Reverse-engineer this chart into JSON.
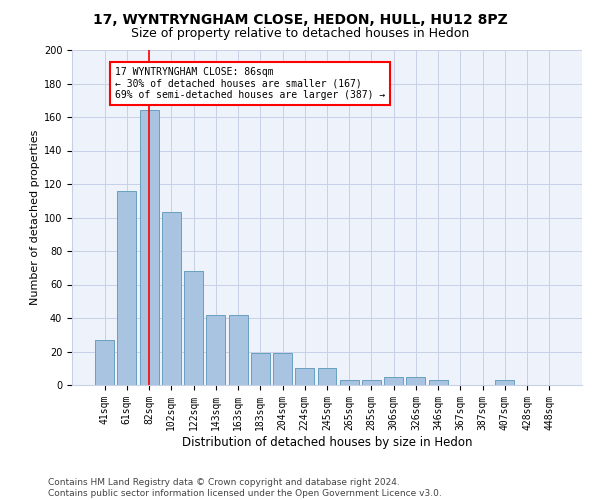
{
  "title": "17, WYNTRYNGHAM CLOSE, HEDON, HULL, HU12 8PZ",
  "subtitle": "Size of property relative to detached houses in Hedon",
  "xlabel": "Distribution of detached houses by size in Hedon",
  "ylabel": "Number of detached properties",
  "categories": [
    "41sqm",
    "61sqm",
    "82sqm",
    "102sqm",
    "122sqm",
    "143sqm",
    "163sqm",
    "183sqm",
    "204sqm",
    "224sqm",
    "245sqm",
    "265sqm",
    "285sqm",
    "306sqm",
    "326sqm",
    "346sqm",
    "367sqm",
    "387sqm",
    "407sqm",
    "428sqm",
    "448sqm"
  ],
  "values": [
    27,
    116,
    164,
    103,
    68,
    42,
    42,
    19,
    19,
    10,
    10,
    3,
    3,
    5,
    5,
    3,
    0,
    0,
    3,
    0,
    0
  ],
  "bar_color": "#a8c4e0",
  "bar_edge_color": "#6a9fc0",
  "vline_color": "red",
  "vline_x": 2,
  "annotation_text": "17 WYNTRYNGHAM CLOSE: 86sqm\n← 30% of detached houses are smaller (167)\n69% of semi-detached houses are larger (387) →",
  "annotation_box_color": "white",
  "annotation_box_edge": "red",
  "ylim": [
    0,
    200
  ],
  "yticks": [
    0,
    20,
    40,
    60,
    80,
    100,
    120,
    140,
    160,
    180,
    200
  ],
  "footer_text": "Contains HM Land Registry data © Crown copyright and database right 2024.\nContains public sector information licensed under the Open Government Licence v3.0.",
  "background_color": "#eef2fb",
  "grid_color": "#c8d0e8",
  "title_fontsize": 10,
  "subtitle_fontsize": 9,
  "ylabel_fontsize": 8,
  "xlabel_fontsize": 8.5,
  "tick_fontsize": 7,
  "annotation_fontsize": 7,
  "footer_fontsize": 6.5
}
